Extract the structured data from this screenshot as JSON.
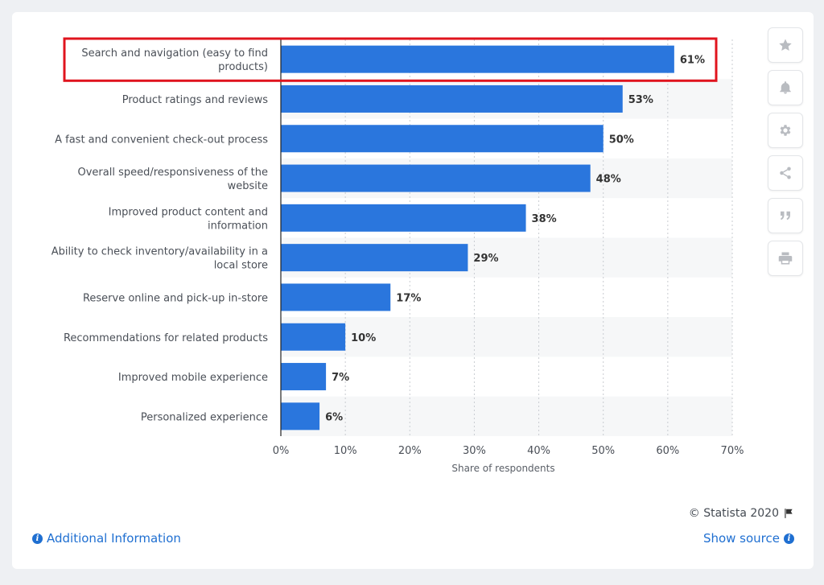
{
  "chart_data": {
    "type": "bar",
    "orientation": "horizontal",
    "categories": [
      "Search and navigation (easy to find products)",
      "Product ratings and reviews",
      "A fast and convenient check-out process",
      "Overall speed/responsiveness of the website",
      "Improved product content and information",
      "Ability to check inventory/availability in a local store",
      "Reserve online and pick-up in-store",
      "Recommendations for related products",
      "Improved mobile experience",
      "Personalized experience"
    ],
    "category_lines": [
      [
        "Search and navigation (easy to find",
        "products)"
      ],
      [
        "Product ratings and reviews"
      ],
      [
        "A fast and convenient check-out process"
      ],
      [
        "Overall speed/responsiveness of the",
        "website"
      ],
      [
        "Improved product content and",
        "information"
      ],
      [
        "Ability to check inventory/availability in a",
        "local store"
      ],
      [
        "Reserve online and pick-up in-store"
      ],
      [
        "Recommendations for related products"
      ],
      [
        "Improved mobile experience"
      ],
      [
        "Personalized experience"
      ]
    ],
    "values": [
      61,
      53,
      50,
      48,
      38,
      29,
      17,
      10,
      7,
      6
    ],
    "value_labels": [
      "61%",
      "53%",
      "50%",
      "48%",
      "38%",
      "29%",
      "17%",
      "10%",
      "7%",
      "6%"
    ],
    "xlabel": "Share of respondents",
    "ylabel": "",
    "xlim": [
      0,
      70
    ],
    "ticks": [
      0,
      10,
      20,
      30,
      40,
      50,
      60,
      70
    ],
    "tick_labels": [
      "0%",
      "10%",
      "20%",
      "30%",
      "40%",
      "50%",
      "60%",
      "70%"
    ],
    "grid": true,
    "highlighted_category_index": 0
  },
  "colors": {
    "bar": "#2a76dd",
    "highlight_box": "#e0141e",
    "link": "#1f6fd1",
    "label_text": "#4a4f57",
    "value_text": "#333333"
  },
  "sidebar": {
    "buttons": [
      {
        "name": "favorite-button",
        "icon": "star-icon"
      },
      {
        "name": "notification-button",
        "icon": "bell-icon"
      },
      {
        "name": "settings-button",
        "icon": "gear-icon"
      },
      {
        "name": "share-button",
        "icon": "share-icon"
      },
      {
        "name": "cite-button",
        "icon": "quote-icon"
      },
      {
        "name": "print-button",
        "icon": "print-icon"
      }
    ]
  },
  "footer": {
    "copyright": "© Statista 2020",
    "additional_info": "Additional Information",
    "show_source": "Show source"
  }
}
